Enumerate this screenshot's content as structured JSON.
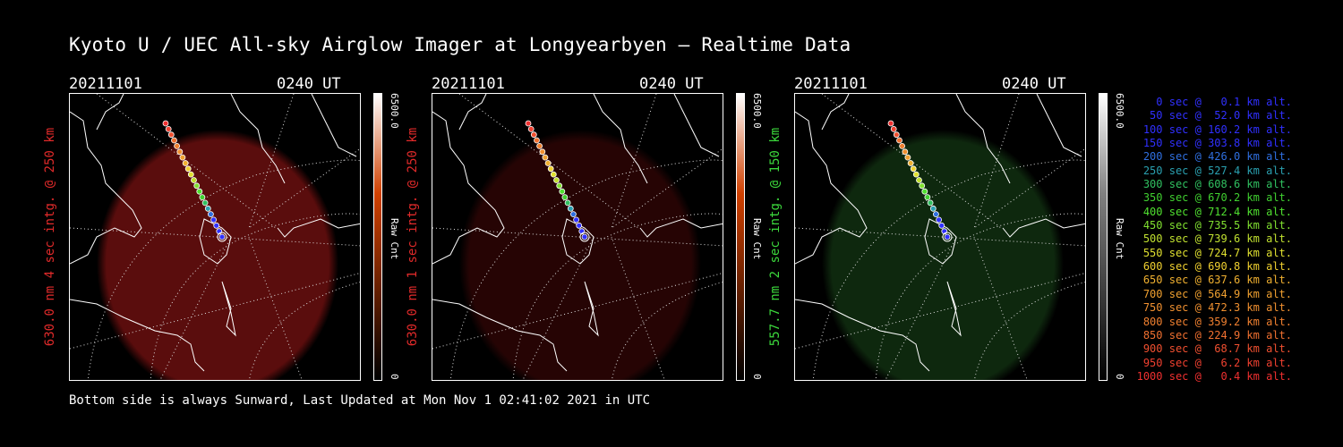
{
  "title": "Kyoto U / UEC All-sky Airglow Imager at Longyearbyen — Realtime Data",
  "footer": "Bottom side is always Sunward, Last Updated at Mon Nov  1 02:41:02 2021 in UTC",
  "panels": [
    {
      "date": "20211101",
      "time": "0240 UT",
      "side_label": "630.0 nm 4 sec intg. @ 250 km",
      "side_color": "#e02a2a",
      "cbar_max": "6500.0",
      "cbar_unit": "Raw Cnt",
      "cbar_min": "0",
      "cbar_top": "#ffffff",
      "cbar_mid": "#d04000",
      "cbar_bottom": "#000000",
      "glow": "#6a0f0f",
      "glow_opacity": 0.85
    },
    {
      "date": "20211101",
      "time": "0240 UT",
      "side_label": "630.0 nm 1 sec intg. @ 250 km",
      "side_color": "#e02a2a",
      "cbar_max": "6500.0",
      "cbar_unit": "Raw Cnt",
      "cbar_min": "0",
      "cbar_top": "#ffffff",
      "cbar_mid": "#d04000",
      "cbar_bottom": "#000000",
      "glow": "#2a0505",
      "glow_opacity": 0.9
    },
    {
      "date": "20211101",
      "time": "0240 UT",
      "side_label": "557.7 nm 2 sec intg. @ 150 km",
      "side_color": "#3cd83c",
      "cbar_max": "6500.0",
      "cbar_unit": "Raw Cnt",
      "cbar_min": "0",
      "cbar_top": "#ffffff",
      "cbar_mid": "#808080",
      "cbar_bottom": "#000000",
      "glow": "#0f2a0f",
      "glow_opacity": 0.95
    }
  ],
  "legend": [
    {
      "text": "0 sec @   0.1 km alt.",
      "color": "#3030ff"
    },
    {
      "text": "50 sec @  52.0 km alt.",
      "color": "#3030ff"
    },
    {
      "text": "100 sec @ 160.2 km alt.",
      "color": "#3030ff"
    },
    {
      "text": "150 sec @ 303.8 km alt.",
      "color": "#3030ff"
    },
    {
      "text": "200 sec @ 426.0 km alt.",
      "color": "#2f6fe0"
    },
    {
      "text": "250 sec @ 527.4 km alt.",
      "color": "#2aa0b0"
    },
    {
      "text": "300 sec @ 608.6 km alt.",
      "color": "#30c060"
    },
    {
      "text": "350 sec @ 670.2 km alt.",
      "color": "#40d030"
    },
    {
      "text": "400 sec @ 712.4 km alt.",
      "color": "#50e030"
    },
    {
      "text": "450 sec @ 735.5 km alt.",
      "color": "#80e030"
    },
    {
      "text": "500 sec @ 739.6 km alt.",
      "color": "#c0e030"
    },
    {
      "text": "550 sec @ 724.7 km alt.",
      "color": "#e0e030"
    },
    {
      "text": "600 sec @ 690.8 km alt.",
      "color": "#f0d030"
    },
    {
      "text": "650 sec @ 637.6 km alt.",
      "color": "#f0b030"
    },
    {
      "text": "700 sec @ 564.9 km alt.",
      "color": "#f0a030"
    },
    {
      "text": "750 sec @ 472.3 km alt.",
      "color": "#f09030"
    },
    {
      "text": "800 sec @ 359.2 km alt.",
      "color": "#f08030"
    },
    {
      "text": "850 sec @ 224.9 km alt.",
      "color": "#f07030"
    },
    {
      "text": "900 sec @  68.7 km alt.",
      "color": "#f05030"
    },
    {
      "text": "950 sec @   6.2 km alt.",
      "color": "#f04030"
    },
    {
      "text": "1000 sec @   0.4 km alt.",
      "color": "#f03030"
    }
  ]
}
